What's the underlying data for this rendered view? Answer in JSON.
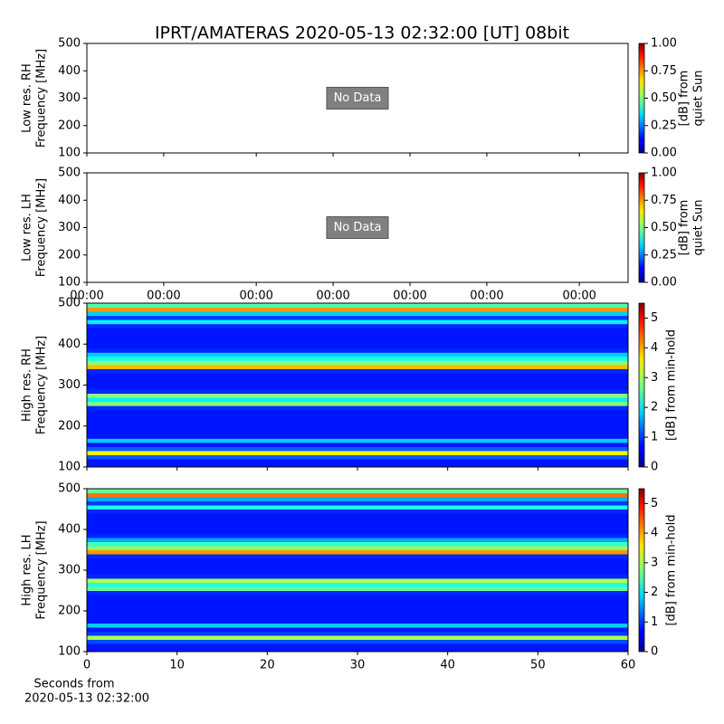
{
  "chart_data": [
    {
      "type": "heatmap",
      "title": "IPRT/AMATERAS 2020-05-13 02:32:00 [UT]   08bit",
      "ylabel": [
        "Low res. RH",
        "Frequency [MHz]"
      ],
      "ylim": [
        100,
        500
      ],
      "yticks": [
        100,
        200,
        300,
        400,
        500
      ],
      "annotation": "No Data",
      "clim": [
        0,
        1
      ],
      "cticks": [
        {
          "value": 0,
          "label": "0.00"
        },
        {
          "value": 0.25,
          "label": "0.25"
        },
        {
          "value": 0.5,
          "label": "0.50"
        },
        {
          "value": 0.75,
          "label": "0.75"
        },
        {
          "value": 1,
          "label": "1.00"
        }
      ],
      "clabel": [
        "[dB] from",
        "quiet Sun"
      ],
      "colormap": "jet"
    },
    {
      "type": "heatmap",
      "ylabel": [
        "Low res. LH",
        "Frequency [MHz]"
      ],
      "ylim": [
        100,
        500
      ],
      "yticks": [
        100,
        200,
        300,
        400,
        500
      ],
      "annotation": "No Data",
      "xtick_labels": [
        "00:00",
        "00:00",
        "00:00",
        "00:00",
        "00:00",
        "00:00",
        "00:00"
      ],
      "clim": [
        0,
        1
      ],
      "cticks": [
        {
          "value": 0,
          "label": "0.00"
        },
        {
          "value": 0.25,
          "label": "0.25"
        },
        {
          "value": 0.5,
          "label": "0.50"
        },
        {
          "value": 0.75,
          "label": "0.75"
        },
        {
          "value": 1,
          "label": "1.00"
        }
      ],
      "clabel": [
        "[dB] from",
        "quiet Sun"
      ],
      "colormap": "jet"
    },
    {
      "type": "heatmap",
      "ylabel": [
        "High res. RH",
        "Frequency [MHz]"
      ],
      "ylim": [
        100,
        500
      ],
      "yticks": [
        100,
        200,
        300,
        400,
        500
      ],
      "xlim": [
        0,
        60
      ],
      "xticks": [
        0,
        10,
        20,
        30,
        40,
        50,
        60
      ],
      "y_bins": [
        100,
        110,
        120,
        130,
        140,
        150,
        160,
        170,
        180,
        190,
        200,
        210,
        220,
        230,
        240,
        250,
        260,
        270,
        280,
        290,
        300,
        310,
        320,
        330,
        340,
        350,
        360,
        370,
        380,
        390,
        400,
        410,
        420,
        430,
        440,
        450,
        460,
        470,
        480,
        490,
        500
      ],
      "values": [
        0.8,
        0.8,
        1.2,
        3.5,
        1.2,
        0.8,
        1.8,
        0.8,
        0.8,
        0.8,
        0.8,
        0.8,
        0.8,
        0.8,
        0.9,
        2.8,
        2.0,
        2.8,
        0.9,
        0.8,
        0.8,
        0.8,
        0.8,
        0.9,
        3.8,
        2.8,
        2.2,
        1.8,
        0.9,
        0.8,
        0.8,
        0.8,
        0.8,
        0.8,
        0.9,
        2.0,
        1.0,
        1.8,
        4.0,
        2.5
      ],
      "clim": [
        0,
        5.5
      ],
      "cticks": [
        0,
        1,
        2,
        3,
        4,
        5
      ],
      "clabel": [
        "[dB] from min-hold"
      ],
      "colormap": "jet"
    },
    {
      "type": "heatmap",
      "ylabel": [
        "High res. LH",
        "Frequency [MHz]"
      ],
      "ylim": [
        100,
        500
      ],
      "yticks": [
        100,
        200,
        300,
        400,
        500
      ],
      "xlim": [
        0,
        60
      ],
      "xticks": [
        0,
        10,
        20,
        30,
        40,
        50,
        60
      ],
      "xlabel": [
        "Seconds from",
        "2020-05-13 02:32:00"
      ],
      "y_bins": [
        100,
        110,
        120,
        130,
        140,
        150,
        160,
        170,
        180,
        190,
        200,
        210,
        220,
        230,
        240,
        250,
        260,
        270,
        280,
        290,
        300,
        310,
        320,
        330,
        340,
        350,
        360,
        370,
        380,
        390,
        400,
        410,
        420,
        430,
        440,
        450,
        460,
        470,
        480,
        490,
        500
      ],
      "values": [
        0.8,
        0.8,
        1.1,
        3.0,
        1.0,
        0.8,
        1.8,
        0.8,
        0.8,
        0.8,
        0.8,
        0.8,
        0.8,
        0.8,
        0.9,
        2.6,
        2.2,
        3.0,
        0.9,
        0.8,
        0.8,
        0.8,
        0.8,
        0.9,
        4.0,
        2.8,
        2.4,
        1.6,
        0.9,
        0.8,
        0.8,
        0.8,
        0.8,
        0.8,
        0.9,
        2.2,
        1.0,
        1.6,
        4.2,
        2.6
      ],
      "clim": [
        0,
        5.5
      ],
      "cticks": [
        0,
        1,
        2,
        3,
        4,
        5
      ],
      "clabel": [
        "[dB] from min-hold"
      ],
      "colormap": "jet"
    }
  ]
}
